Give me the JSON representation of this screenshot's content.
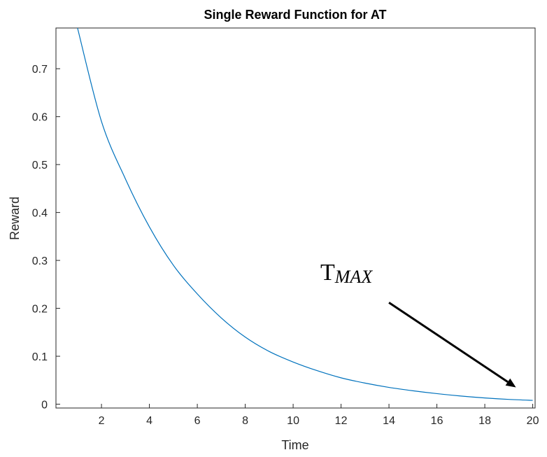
{
  "chart_data": {
    "type": "line",
    "title": "Single Reward Function for AT",
    "xlabel": "Time",
    "ylabel": "Reward",
    "xlim": [
      0.1,
      20.1
    ],
    "ylim": [
      -0.008,
      0.785
    ],
    "xticks": [
      2,
      4,
      6,
      8,
      10,
      12,
      14,
      16,
      18,
      20
    ],
    "yticks": [
      0,
      0.1,
      0.2,
      0.3,
      0.4,
      0.5,
      0.6,
      0.7
    ],
    "ytick_labels": [
      "0",
      "0.1",
      "0.2",
      "0.3",
      "0.4",
      "0.5",
      "0.6",
      "0.7"
    ],
    "grid": false,
    "series": [
      {
        "color": "#0072BD",
        "x": [
          1,
          2,
          3,
          4,
          5,
          6,
          7,
          8,
          9,
          10,
          11,
          12,
          13,
          14,
          15,
          16,
          17,
          18,
          19,
          20
        ],
        "y": [
          0.785,
          0.59,
          0.47,
          0.37,
          0.29,
          0.23,
          0.18,
          0.14,
          0.11,
          0.088,
          0.07,
          0.055,
          0.044,
          0.035,
          0.028,
          0.022,
          0.017,
          0.013,
          0.01,
          0.008
        ]
      }
    ],
    "annotation": {
      "text_main": "T",
      "text_sub": "MAX",
      "arrow_from": [
        14.0,
        0.212
      ],
      "arrow_to": [
        19.3,
        0.035
      ],
      "color": "#000000"
    }
  }
}
